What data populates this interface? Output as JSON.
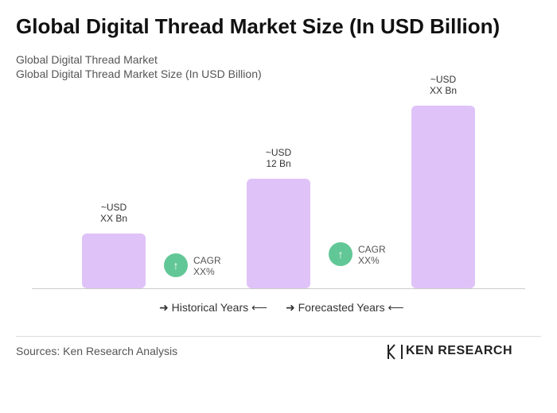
{
  "chart_data": {
    "type": "bar",
    "title": "Global Digital Thread Market Size (In USD Billion)",
    "subtitle": [
      "Global Digital Thread Market",
      "Global Digital Thread Market Size (In USD Billion)"
    ],
    "values": [
      6,
      12,
      20
    ],
    "value_labels": [
      "~USD\nXX Bn",
      "~USD\n12 Bn",
      "~USD\nXX Bn"
    ],
    "color": "#dfc3f8",
    "annotations": [
      "CAGR\nXX%",
      "CAGR\nXX%"
    ],
    "annotation_color": "#62c796",
    "legend": [
      "Historical Years",
      "Forecasted Years"
    ],
    "source": "Sources: Ken Research Analysis",
    "logo": "KEN RESEARCH"
  }
}
